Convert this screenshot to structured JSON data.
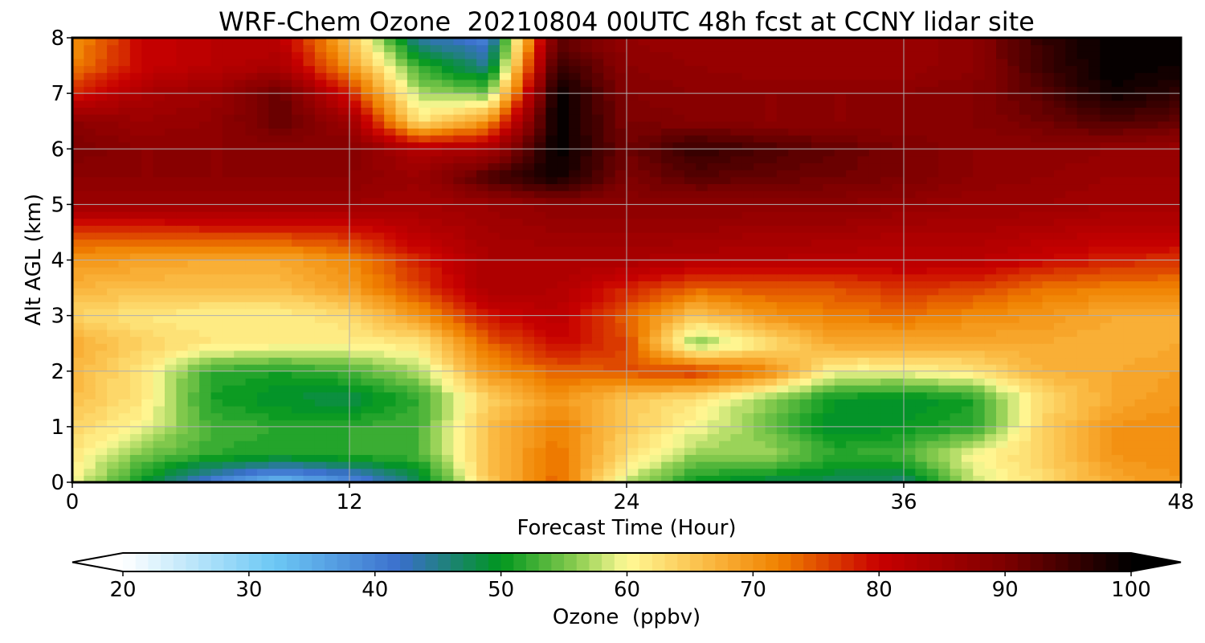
{
  "chart_data": {
    "type": "heatmap",
    "title": "WRF-Chem Ozone  20210804 00UTC 48h fcst at CCNY lidar site",
    "xlabel": "Forecast Time (Hour)",
    "ylabel": "Alt AGL (km)",
    "xlim": [
      0,
      48
    ],
    "ylim": [
      0,
      8
    ],
    "xticks": [
      0,
      12,
      24,
      36,
      48
    ],
    "yticks": [
      0,
      1,
      2,
      3,
      4,
      5,
      6,
      7,
      8
    ],
    "grid": true,
    "colorbar": {
      "label": "Ozone  (ppbv)",
      "min": 20,
      "max": 100,
      "ticks": [
        20,
        30,
        40,
        50,
        60,
        70,
        80,
        90,
        100
      ],
      "extend": "both",
      "orientation": "horizontal",
      "colors": [
        "#ffffff",
        "#6cc8f5",
        "#3a6fcc",
        "#00961e",
        "#8ccd50",
        "#fffa96",
        "#fab43c",
        "#f08200",
        "#c80000",
        "#7d0000",
        "#000000"
      ],
      "color_stops": [
        20,
        32,
        42,
        50,
        56,
        60,
        67,
        72,
        80,
        90,
        100
      ]
    },
    "units": "ppbv",
    "x": [
      0,
      3,
      6,
      9,
      12,
      15,
      18,
      21,
      24,
      27,
      30,
      33,
      36,
      39,
      42,
      45,
      48
    ],
    "y": [
      0,
      0.5,
      1,
      1.5,
      2,
      2.5,
      3,
      3.5,
      4,
      4.5,
      5,
      5.5,
      6,
      6.5,
      7,
      7.5,
      8
    ],
    "z": [
      [
        60,
        50,
        40,
        33,
        38,
        47,
        65,
        74,
        58,
        50,
        48,
        47,
        46,
        58,
        63,
        68,
        70
      ],
      [
        62,
        55,
        52,
        51,
        52,
        53,
        66,
        73,
        63,
        56,
        57,
        52,
        53,
        60,
        64,
        70,
        71
      ],
      [
        64,
        60,
        53,
        52,
        52,
        53,
        66,
        72,
        65,
        60,
        55,
        49,
        50,
        52,
        64,
        70,
        71
      ],
      [
        66,
        62,
        51,
        49,
        48,
        52,
        64,
        70,
        65,
        62,
        56,
        50,
        49,
        51,
        63,
        68,
        70
      ],
      [
        67,
        62,
        52,
        51,
        53,
        57,
        70,
        74,
        75,
        77,
        72,
        60,
        60,
        62,
        67,
        68,
        69
      ],
      [
        68,
        64,
        62,
        61,
        61,
        62,
        74,
        80,
        76,
        55,
        62,
        68,
        68,
        68,
        68,
        67,
        68
      ],
      [
        64,
        62,
        61,
        61,
        63,
        70,
        79,
        82,
        74,
        65,
        70,
        72,
        73,
        71,
        70,
        68,
        68
      ],
      [
        67,
        66,
        66,
        66,
        69,
        76,
        84,
        83,
        78,
        74,
        75,
        75,
        77,
        76,
        73,
        72,
        72
      ],
      [
        70,
        69,
        68,
        68,
        71,
        78,
        84,
        84,
        84,
        83,
        83,
        82,
        82,
        82,
        80,
        78,
        77
      ],
      [
        76,
        76,
        77,
        77,
        78,
        82,
        85,
        86,
        86,
        86,
        85,
        85,
        84,
        84,
        83,
        82,
        82
      ],
      [
        86,
        86,
        86,
        86,
        86,
        85,
        86,
        88,
        88,
        88,
        88,
        88,
        87,
        86,
        86,
        85,
        85
      ],
      [
        88,
        88,
        88,
        88,
        88,
        86,
        94,
        99,
        90,
        93,
        92,
        91,
        90,
        88,
        87,
        86,
        86
      ],
      [
        90,
        88,
        88,
        88,
        89,
        83,
        84,
        100,
        91,
        96,
        94,
        92,
        90,
        88,
        88,
        87,
        86
      ],
      [
        88,
        86,
        87,
        92,
        86,
        62,
        70,
        100,
        90,
        89,
        88,
        88,
        88,
        89,
        91,
        94,
        92
      ],
      [
        78,
        84,
        86,
        92,
        78,
        57,
        55,
        100,
        89,
        88,
        88,
        88,
        88,
        89,
        93,
        99,
        96
      ],
      [
        72,
        80,
        82,
        84,
        70,
        52,
        45,
        96,
        88,
        87,
        86,
        86,
        86,
        88,
        95,
        100,
        99
      ],
      [
        70,
        80,
        82,
        82,
        66,
        44,
        40,
        92,
        87,
        86,
        86,
        86,
        86,
        88,
        96,
        100,
        100
      ]
    ]
  }
}
